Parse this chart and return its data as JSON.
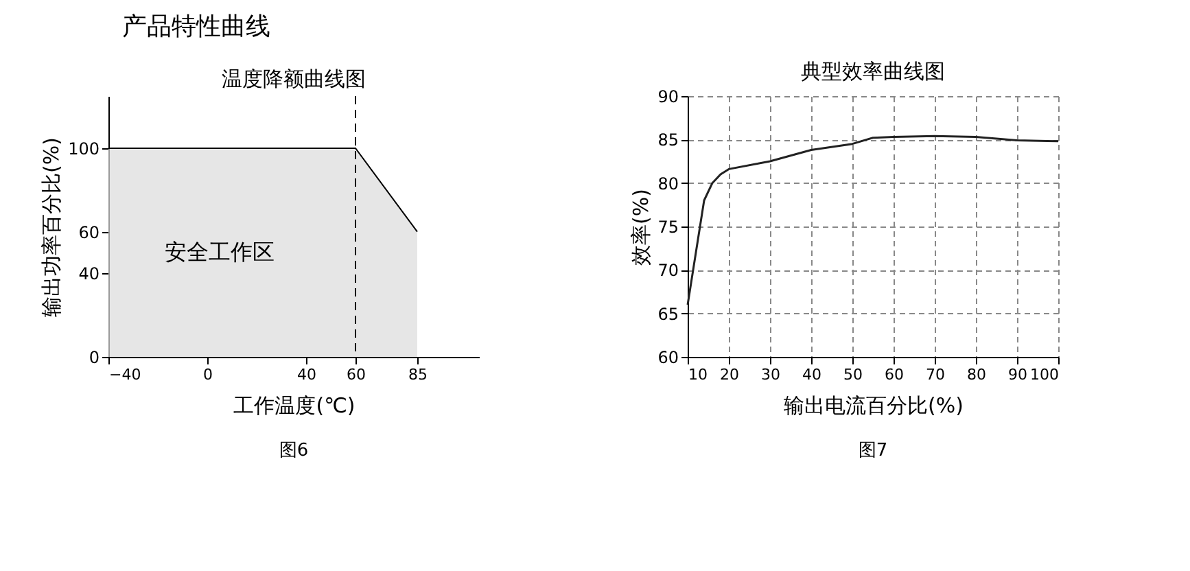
{
  "chart_data": [
    {
      "type": "other",
      "title": "产品特性曲线"
    },
    {
      "type": "area",
      "title": "温度降额曲线图",
      "xlabel": "工作温度(℃)",
      "ylabel": "输出功率百分比(%)",
      "x": [
        -40,
        60,
        85
      ],
      "values": [
        100,
        100,
        60
      ],
      "color": "#dcdcdc",
      "xlim": [
        -40,
        110
      ],
      "ylim": [
        0,
        125
      ],
      "xticks": [
        -40,
        0,
        40,
        60,
        85
      ],
      "yticks": [
        0,
        40,
        60,
        100
      ],
      "grid": false,
      "ref_lines": [
        {
          "axis": "x",
          "value": 60,
          "line_style": "dashed",
          "color": "#000000"
        }
      ],
      "annotations": [
        "安全工作区",
        "图6"
      ]
    },
    {
      "type": "line",
      "title": "典型效率曲线图",
      "xlabel": "输出电流百分比(%)",
      "ylabel": "效率(%)",
      "x": [
        10,
        12,
        14,
        16,
        18,
        20,
        30,
        40,
        50,
        55,
        60,
        70,
        80,
        90,
        100
      ],
      "values": [
        66,
        72,
        78,
        80,
        81,
        81.6,
        82.5,
        83.8,
        84.5,
        85.2,
        85.3,
        85.4,
        85.3,
        84.9,
        84.8
      ],
      "color": "#222222",
      "xlim": [
        10,
        100
      ],
      "ylim": [
        60,
        90
      ],
      "xticks": [
        10,
        20,
        30,
        40,
        50,
        60,
        70,
        80,
        90,
        100
      ],
      "yticks": [
        60,
        65,
        70,
        75,
        80,
        85,
        90
      ],
      "grid": true,
      "marker": "none",
      "line_style": "solid",
      "annotations": [
        "图7"
      ]
    }
  ]
}
